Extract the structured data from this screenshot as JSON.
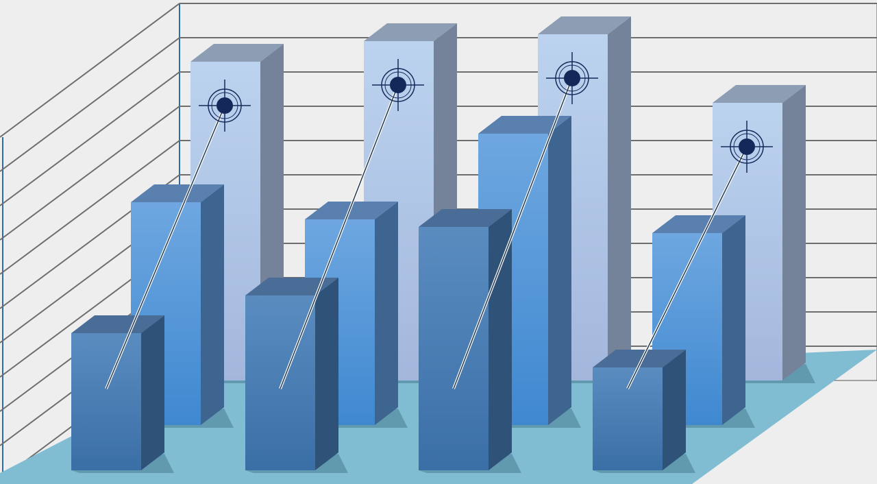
{
  "chart_data": {
    "type": "bar",
    "style": "3d-clustered",
    "title": "",
    "xlabel": "",
    "ylabel": "",
    "grid": true,
    "legend": "none",
    "categories": [
      "",
      "",
      "",
      ""
    ],
    "series": [
      {
        "row": "back",
        "color": "#b7cdeb",
        "values": [
          9.3,
          9.9,
          10.1,
          8.1
        ],
        "marker": "target-icon"
      },
      {
        "row": "middle",
        "color": "#5a9ad8",
        "values": [
          6.5,
          6.0,
          8.5,
          5.6
        ]
      },
      {
        "row": "front",
        "color": "#4a7db3",
        "values": [
          4.0,
          5.1,
          7.1,
          3.0
        ]
      }
    ],
    "ylim": [
      0,
      11
    ],
    "colors": {
      "wall": "#eeeeee",
      "gridline": "#6e6e6e",
      "floor": "#80bdd3",
      "target": "#14285a"
    }
  }
}
